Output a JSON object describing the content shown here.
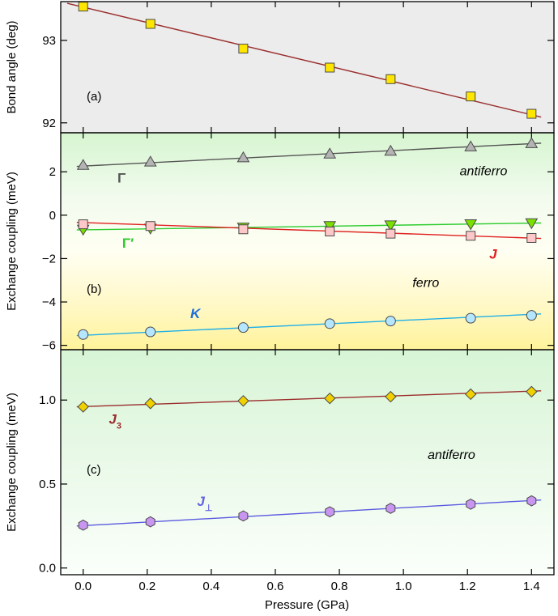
{
  "chart_data": {
    "type": "scatter",
    "xlabel": "Pressure (GPa)",
    "xlim": [
      -0.07,
      1.47
    ],
    "xticks": [
      0.0,
      0.2,
      0.4,
      0.6,
      0.8,
      1.0,
      1.2,
      1.4
    ],
    "xtick_labels": [
      "0.0",
      "0.2",
      "0.4",
      "0.6",
      "0.8",
      "1.0",
      "1.2",
      "1.4"
    ],
    "panels": [
      {
        "label": "(a)",
        "ylabel": "Bond angle (deg)",
        "ylim": [
          91.88,
          93.47
        ],
        "yticks": [
          92,
          93
        ],
        "ytick_labels": [
          "92",
          "93"
        ],
        "series": [
          {
            "name": "Bond angle",
            "marker": "square",
            "fill": "#ffe600",
            "line": "#9b2d2d",
            "x": [
              0.0,
              0.21,
              0.5,
              0.77,
              0.96,
              1.21,
              1.4
            ],
            "y": [
              93.41,
              93.2,
              92.9,
              92.67,
              92.53,
              92.32,
              92.11
            ],
            "fit": [
              [
                -0.05,
                93.45
              ],
              [
                1.43,
                92.07
              ]
            ]
          }
        ],
        "annotations": []
      },
      {
        "label": "(b)",
        "ylabel": "Exchange coupling (meV)",
        "ylim": [
          -6.2,
          3.8
        ],
        "yticks": [
          -6,
          -4,
          -2,
          0,
          2
        ],
        "ytick_labels": [
          "−6",
          "−4",
          "−2",
          "0",
          "2"
        ],
        "series": [
          {
            "name": "Γ",
            "marker": "triangle-up",
            "fill": "#b4b4b4",
            "line": "#555555",
            "x": [
              0.0,
              0.21,
              0.5,
              0.77,
              0.96,
              1.21,
              1.4
            ],
            "y": [
              2.3,
              2.45,
              2.65,
              2.82,
              2.95,
              3.15,
              3.3
            ],
            "fit": [
              [
                -0.02,
                2.25
              ],
              [
                1.43,
                3.32
              ]
            ]
          },
          {
            "name": "Γ′",
            "marker": "triangle-down",
            "fill": "#7be000",
            "line": "#2ecc2e",
            "x": [
              0.0,
              0.21,
              0.5,
              0.77,
              0.96,
              1.21,
              1.4
            ],
            "y": [
              -0.65,
              -0.6,
              -0.55,
              -0.48,
              -0.45,
              -0.4,
              -0.35
            ],
            "fit": [
              [
                -0.02,
                -0.68
              ],
              [
                1.43,
                -0.36
              ]
            ]
          },
          {
            "name": "J",
            "marker": "square",
            "fill": "#ffc8c8",
            "line": "#e02020",
            "x": [
              0.0,
              0.21,
              0.5,
              0.77,
              0.96,
              1.21,
              1.4
            ],
            "y": [
              -0.42,
              -0.5,
              -0.65,
              -0.75,
              -0.85,
              -0.95,
              -1.05
            ],
            "fit": [
              [
                -0.02,
                -0.33
              ],
              [
                1.43,
                -1.07
              ]
            ]
          },
          {
            "name": "K",
            "marker": "circle",
            "fill": "#b4e6ff",
            "line": "#20b0e8",
            "x": [
              0.0,
              0.21,
              0.5,
              0.77,
              0.96,
              1.21,
              1.4
            ],
            "y": [
              -5.5,
              -5.38,
              -5.18,
              -5.0,
              -4.88,
              -4.75,
              -4.62
            ],
            "fit": [
              [
                -0.02,
                -5.55
              ],
              [
                1.43,
                -4.55
              ]
            ]
          }
        ],
        "annotations": [
          {
            "text": "antiferro",
            "italic": true,
            "bold": false,
            "color": "#000000",
            "x": 1.25,
            "y": 1.85,
            "sub": ""
          },
          {
            "text": "ferro",
            "italic": true,
            "bold": false,
            "color": "#000000",
            "x": 1.07,
            "y": -3.3,
            "sub": ""
          },
          {
            "text": "Γ",
            "italic": false,
            "bold": true,
            "color": "#555555",
            "x": 0.12,
            "y": 1.5,
            "sub": ""
          },
          {
            "text": "Γ′",
            "italic": false,
            "bold": true,
            "color": "#2ecc2e",
            "x": 0.14,
            "y": -1.5,
            "sub": ""
          },
          {
            "text": "J",
            "italic": true,
            "bold": true,
            "color": "#e02020",
            "x": 1.28,
            "y": -2.0,
            "sub": ""
          },
          {
            "text": "K",
            "italic": true,
            "bold": true,
            "color": "#1e6fd8",
            "x": 0.35,
            "y": -4.75,
            "sub": ""
          }
        ]
      },
      {
        "label": "(c)",
        "ylabel": "Exchange coupling (meV)",
        "ylim": [
          -0.04,
          1.3
        ],
        "yticks": [
          0.0,
          0.5,
          1.0
        ],
        "ytick_labels": [
          "0.0",
          "0.5",
          "1.0"
        ],
        "series": [
          {
            "name": "J3",
            "marker": "diamond",
            "fill": "#f0d000",
            "line": "#9b2d2d",
            "x": [
              0.0,
              0.21,
              0.5,
              0.77,
              0.96,
              1.21,
              1.4
            ],
            "y": [
              0.96,
              0.98,
              0.995,
              1.01,
              1.02,
              1.035,
              1.05
            ],
            "fit": [
              [
                -0.02,
                0.96
              ],
              [
                1.43,
                1.055
              ]
            ]
          },
          {
            "name": "J⊥",
            "marker": "hexagon",
            "fill": "#c896f0",
            "line": "#5a5ae0",
            "x": [
              0.0,
              0.21,
              0.5,
              0.77,
              0.96,
              1.21,
              1.4
            ],
            "y": [
              0.255,
              0.275,
              0.31,
              0.335,
              0.355,
              0.38,
              0.4
            ],
            "fit": [
              [
                -0.02,
                0.25
              ],
              [
                1.43,
                0.405
              ]
            ]
          }
        ],
        "annotations": [
          {
            "text": "antiferro",
            "italic": true,
            "bold": false,
            "color": "#000000",
            "x": 1.15,
            "y": 0.65,
            "sub": ""
          },
          {
            "text": "J",
            "italic": true,
            "bold": true,
            "color": "#9b2d2d",
            "x": 0.1,
            "y": 0.86,
            "sub": "3"
          },
          {
            "text": "J",
            "italic": true,
            "bold": true,
            "color": "#6464e0",
            "x": 0.38,
            "y": 0.37,
            "sub": "⊥"
          }
        ]
      }
    ]
  }
}
